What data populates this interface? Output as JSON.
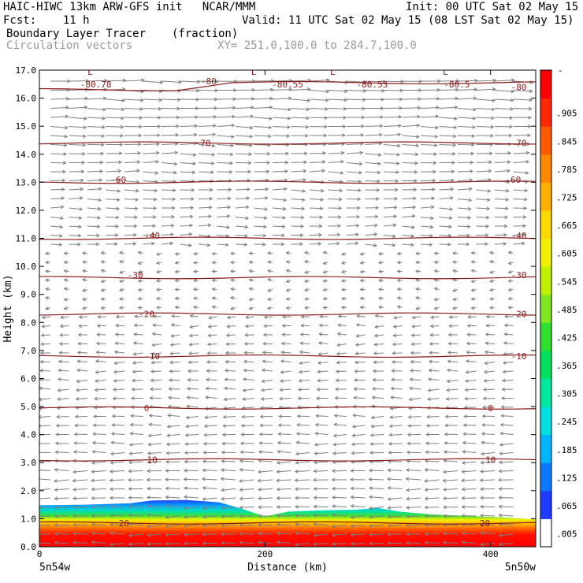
{
  "header": {
    "line1_left": "HAIC-HIWC 13km ARW-GFS init   NCAR/MMM",
    "line1_right": "Init: 00 UTC Sat 02 May 15",
    "line2_left": "Fcst:    11 h",
    "line2_right": "Valid: 11 UTC Sat 02 May 15 (08 LST Sat 02 May 15)",
    "field_name": "Boundary Layer Tracer",
    "field_units": "(fraction)",
    "vectors_label": "Circulation vectors",
    "xy_label": "XY= 251.0,100.0 to 284.7,100.0"
  },
  "colors": {
    "contour": "#8b1a1a",
    "vector": "#7f7f7f",
    "plot_border": "#000000"
  },
  "chart_data": {
    "type": "heatmap",
    "title": "Boundary Layer Tracer",
    "xlabel": "Distance (km)",
    "ylabel": "Height (km)",
    "xlim": [
      0,
      440
    ],
    "ylim": [
      0,
      17
    ],
    "x_ticks": [
      0,
      200,
      400
    ],
    "x_tick_labels": [
      "0",
      "200",
      "400"
    ],
    "y_ticks": [
      0,
      1,
      2,
      3,
      4,
      5,
      6,
      7,
      8,
      9,
      10,
      11,
      12,
      13,
      14,
      15,
      16,
      17
    ],
    "y_tick_labels": [
      "0.0",
      "1.0",
      "2.0",
      "3.0",
      "4.0",
      "5.0",
      "6.0",
      "7.0",
      "8.0",
      "9.0",
      "10.0",
      "11.0",
      "12.0",
      "13.0",
      "14.0",
      "15.0",
      "16.0",
      "17.0"
    ],
    "x_end_labels": {
      "left": "5n54w",
      "right": "5n50w"
    },
    "grid": false,
    "colorbar": {
      "position": "right",
      "labels": [
        ".005",
        ".065",
        ".125",
        ".185",
        ".245",
        ".305",
        ".365",
        ".425",
        ".485",
        ".545",
        ".605",
        ".665",
        ".725",
        ".785",
        ".845",
        ".905"
      ],
      "top_label": "-",
      "colors": [
        "#ffffff",
        "#1e3cff",
        "#0a78ff",
        "#00b4ff",
        "#00e0e0",
        "#00e8a0",
        "#00e060",
        "#30e030",
        "#80e820",
        "#c0f000",
        "#f0f000",
        "#ffd800",
        "#ffb000",
        "#ff8800",
        "#ff5a00",
        "#ff2800",
        "#ff0000"
      ]
    },
    "boundary_layer_top_km": [
      [
        0,
        1.48
      ],
      [
        40,
        1.5
      ],
      [
        80,
        1.55
      ],
      [
        100,
        1.65
      ],
      [
        130,
        1.67
      ],
      [
        160,
        1.58
      ],
      [
        180,
        1.35
      ],
      [
        200,
        1.08
      ],
      [
        220,
        1.25
      ],
      [
        250,
        1.3
      ],
      [
        280,
        1.32
      ],
      [
        300,
        1.38
      ],
      [
        320,
        1.25
      ],
      [
        350,
        1.15
      ],
      [
        380,
        1.1
      ],
      [
        410,
        1.05
      ],
      [
        440,
        0.98
      ]
    ],
    "temperature_contours": [
      {
        "value": -80,
        "height_km": 16.3
      },
      {
        "value": -70,
        "height_km": 14.4
      },
      {
        "value": -60,
        "height_km": 13.0
      },
      {
        "value": -40,
        "height_km": 11.0
      },
      {
        "value": -30,
        "height_km": 9.6
      },
      {
        "value": -20,
        "height_km": 8.3
      },
      {
        "value": -10,
        "height_km": 6.8
      },
      {
        "value": 0,
        "height_km": 4.95
      },
      {
        "value": 10,
        "height_km": 3.1
      },
      {
        "value": 20,
        "height_km": 0.85
      }
    ],
    "contour_labels": [
      {
        "text": "-80.78",
        "x": 50,
        "y": 16.5
      },
      {
        "text": "-80",
        "x": 150,
        "y": 16.6
      },
      {
        "text": "-80.55",
        "x": 220,
        "y": 16.5
      },
      {
        "text": "-80.53",
        "x": 295,
        "y": 16.5
      },
      {
        "text": "-80.5",
        "x": 370,
        "y": 16.5
      },
      {
        "text": "-80",
        "x": 425,
        "y": 16.4
      },
      {
        "text": "-70",
        "x": 145,
        "y": 14.4
      },
      {
        "text": "-70",
        "x": 425,
        "y": 14.4
      },
      {
        "text": "-60",
        "x": 70,
        "y": 13.1
      },
      {
        "text": "-60",
        "x": 420,
        "y": 13.1
      },
      {
        "text": "-40",
        "x": 100,
        "y": 11.1
      },
      {
        "text": "-40",
        "x": 425,
        "y": 11.1
      },
      {
        "text": "-30",
        "x": 85,
        "y": 9.7
      },
      {
        "text": "-30",
        "x": 425,
        "y": 9.7
      },
      {
        "text": "-20",
        "x": 95,
        "y": 8.3
      },
      {
        "text": "-20",
        "x": 425,
        "y": 8.3
      },
      {
        "text": "-10",
        "x": 100,
        "y": 6.8
      },
      {
        "text": "-10",
        "x": 425,
        "y": 6.8
      },
      {
        "text": "0",
        "x": 95,
        "y": 4.95
      },
      {
        "text": "0",
        "x": 400,
        "y": 4.95
      },
      {
        "text": "10",
        "x": 100,
        "y": 3.1
      },
      {
        "text": "10",
        "x": 400,
        "y": 3.1
      },
      {
        "text": "20",
        "x": 75,
        "y": 0.85
      },
      {
        "text": "20",
        "x": 395,
        "y": 0.85
      }
    ],
    "low_markers": [
      {
        "text": "L",
        "x": 45,
        "y": 16.95
      },
      {
        "text": "L",
        "x": 190,
        "y": 16.95
      },
      {
        "text": "L",
        "x": 260,
        "y": 16.95
      },
      {
        "text": "L",
        "x": 360,
        "y": 16.95
      }
    ]
  },
  "axes": {
    "xlabel": "Distance (km)",
    "ylabel": "Height (km)"
  }
}
